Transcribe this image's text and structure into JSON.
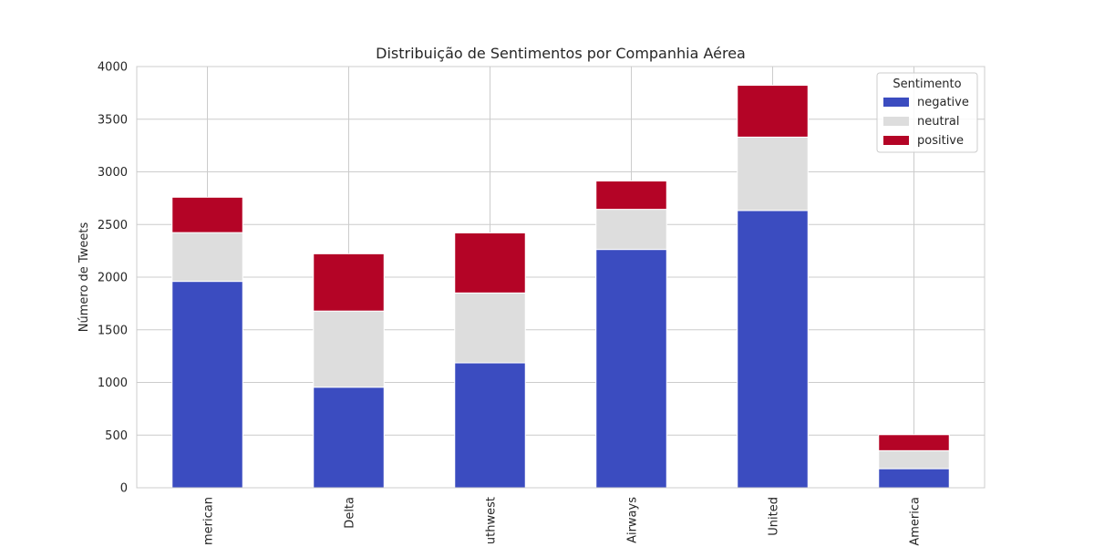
{
  "chart_data": {
    "type": "bar",
    "stacked": true,
    "title": "Distribuição de Sentimentos por Companhia Aérea",
    "xlabel": "",
    "ylabel": "Número de Tweets",
    "ylim": [
      0,
      4000
    ],
    "yticks": [
      0,
      500,
      1000,
      1500,
      2000,
      2500,
      3000,
      3500,
      4000
    ],
    "categories": [
      "American",
      "Delta",
      "Southwest",
      "US Airways",
      "United",
      "Virgin America"
    ],
    "category_labels_visible": [
      "merican",
      "Delta",
      "uthwest",
      "Airways",
      "United",
      "America"
    ],
    "series": [
      {
        "name": "negative",
        "color": "#3b4cc0",
        "values": [
          1960,
          955,
          1186,
          2263,
          2633,
          181
        ]
      },
      {
        "name": "neutral",
        "color": "#dddddd",
        "values": [
          463,
          723,
          664,
          381,
          697,
          171
        ]
      },
      {
        "name": "positive",
        "color": "#b40426",
        "values": [
          336,
          544,
          570,
          269,
          492,
          152
        ]
      }
    ],
    "grid": true,
    "legend": {
      "title": "Sentimento",
      "position": "top-right"
    }
  }
}
